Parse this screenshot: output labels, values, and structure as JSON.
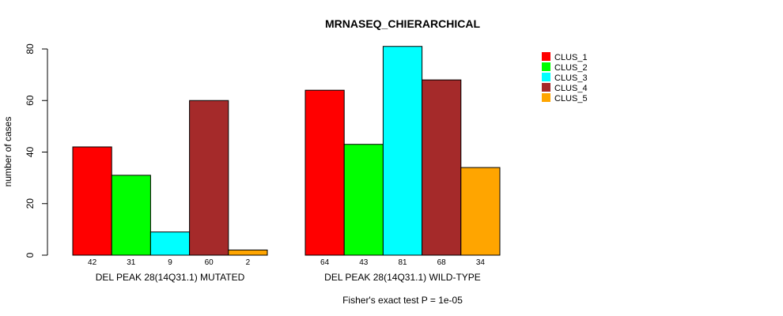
{
  "chart_data": {
    "type": "bar",
    "title": "MRNASEQ_CHIERARCHICAL",
    "ylabel": "number of cases",
    "ylim": [
      0,
      80
    ],
    "yticks": [
      0,
      20,
      40,
      60,
      80
    ],
    "groups": [
      "DEL PEAK 28(14Q31.1) MUTATED",
      "DEL PEAK 28(14Q31.1) WILD-TYPE"
    ],
    "series": [
      {
        "name": "CLUS_1",
        "color": "#ff0000",
        "values": [
          42,
          64
        ]
      },
      {
        "name": "CLUS_2",
        "color": "#00ff00",
        "values": [
          31,
          43
        ]
      },
      {
        "name": "CLUS_3",
        "color": "#00ffff",
        "values": [
          9,
          81
        ]
      },
      {
        "name": "CLUS_4",
        "color": "#a52a2a",
        "values": [
          60,
          68
        ]
      },
      {
        "name": "CLUS_5",
        "color": "#ffa500",
        "values": [
          2,
          34
        ]
      }
    ],
    "legend_position": "top-right",
    "footnote": "Fisher's exact test P = 1e-05"
  }
}
